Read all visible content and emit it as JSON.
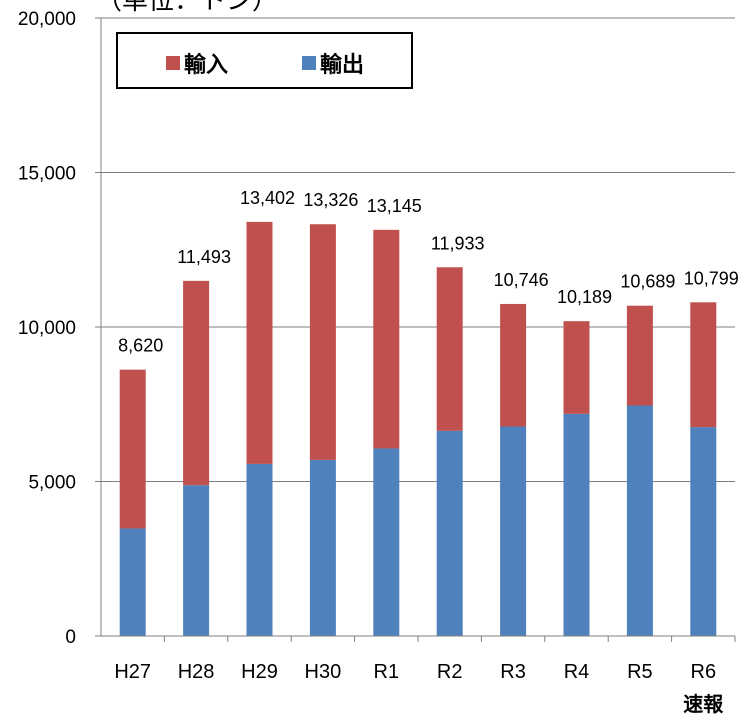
{
  "unit_label": "（単位：トン）",
  "colors": {
    "import": "#c0504d",
    "export": "#4f81bd"
  },
  "chart_data": {
    "type": "bar",
    "stacked": true,
    "categories": [
      "H27",
      "H28",
      "H29",
      "H30",
      "R1",
      "R2",
      "R3",
      "R4",
      "R5",
      "R6"
    ],
    "category_sublabels": [
      "",
      "",
      "",
      "",
      "",
      "",
      "",
      "",
      "",
      "速報"
    ],
    "series": [
      {
        "name": "輸出",
        "values": [
          3480,
          4880,
          5570,
          5700,
          6070,
          6640,
          6780,
          7190,
          7460,
          6760
        ]
      },
      {
        "name": "輸入",
        "values": [
          5140,
          6613,
          7832,
          7626,
          7075,
          5293,
          3966,
          2999,
          3229,
          4039
        ]
      }
    ],
    "totals": [
      8620,
      11493,
      13402,
      13326,
      13145,
      11933,
      10746,
      10189,
      10689,
      10799
    ],
    "total_labels": [
      "8,620",
      "11,493",
      "13,402",
      "13,326",
      "13,145",
      "11,933",
      "10,746",
      "10,189",
      "10,689",
      "10,799"
    ],
    "yticks": [
      "0",
      "5,000",
      "10,000",
      "15,000",
      "20,000"
    ],
    "ytick_values": [
      0,
      5000,
      10000,
      15000,
      20000
    ],
    "ylim": [
      0,
      20000
    ],
    "grid": "horizontal",
    "legend": [
      {
        "name": "輸入",
        "color": "#c0504d"
      },
      {
        "name": "輸出",
        "color": "#4f81bd"
      }
    ],
    "legend_position": "top-left"
  }
}
